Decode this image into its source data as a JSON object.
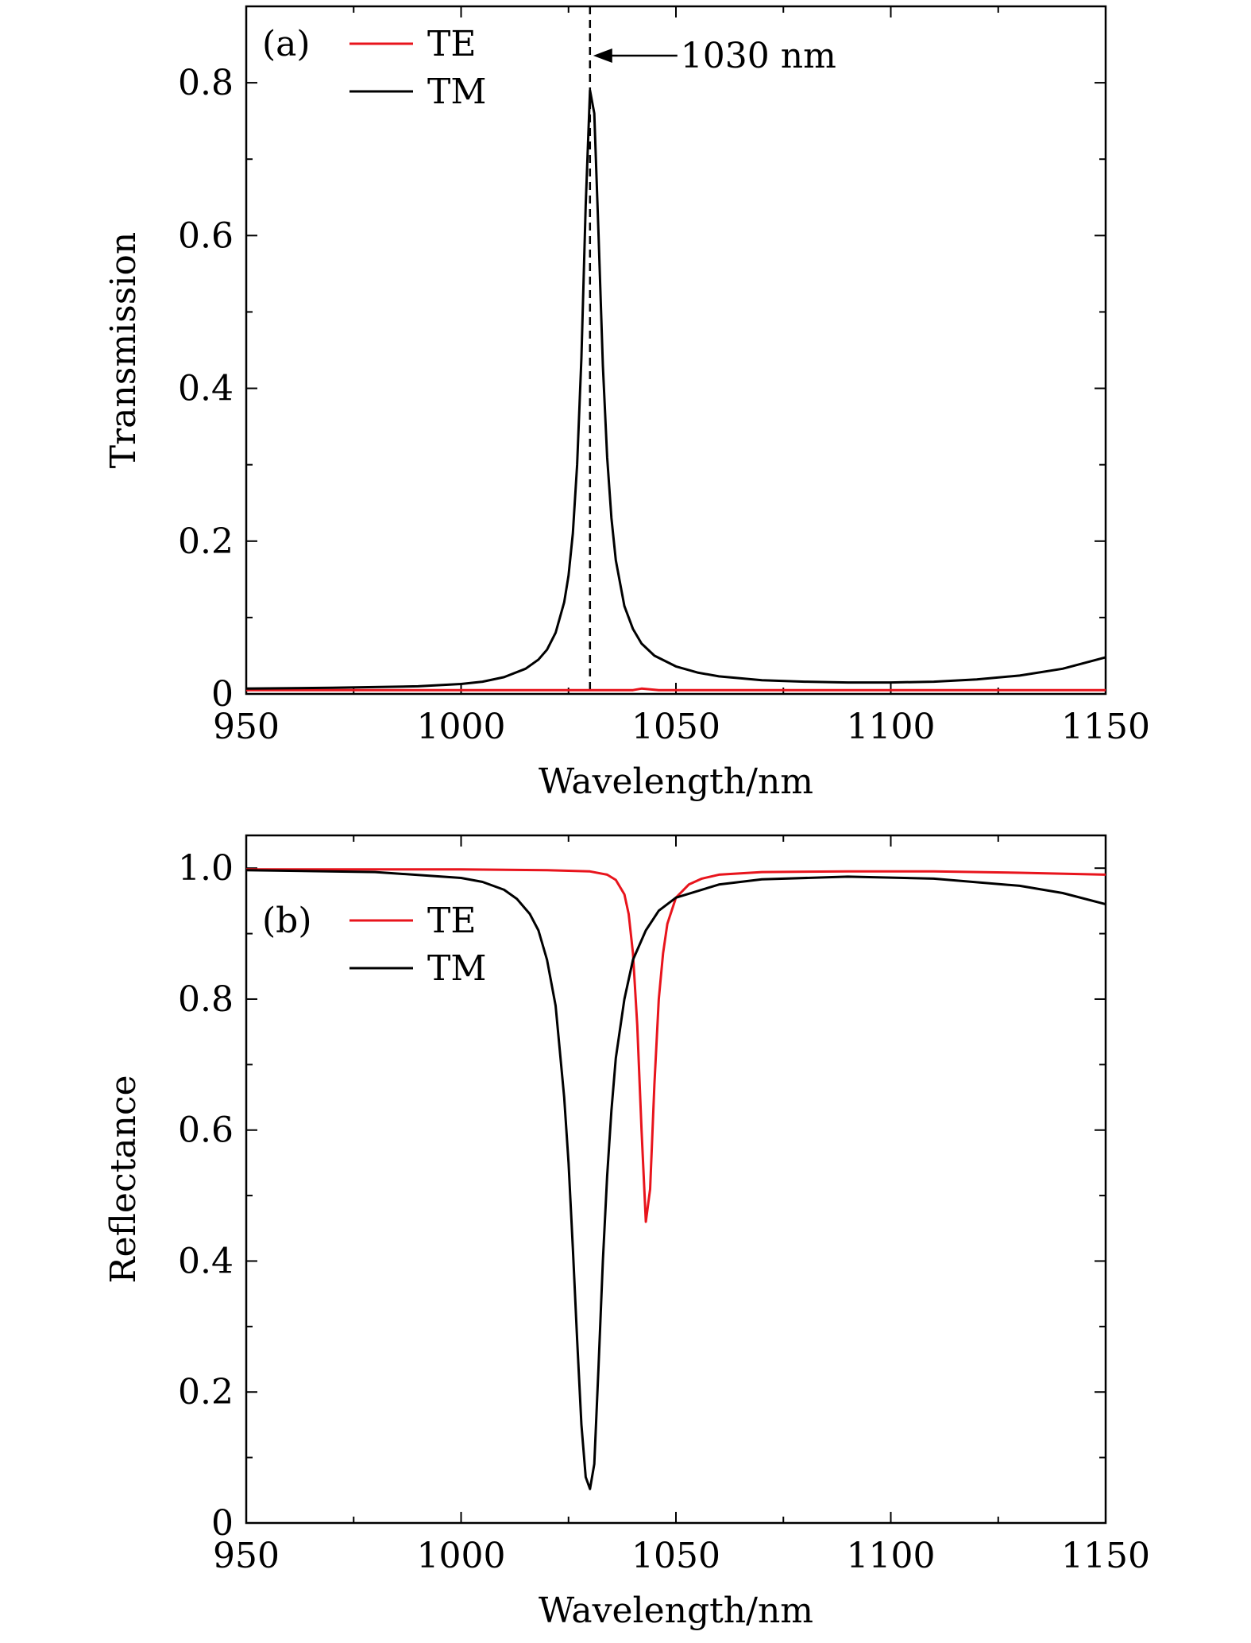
{
  "chart_data": [
    {
      "type": "line",
      "panel_label": "(a)",
      "xlabel": "Wavelength/nm",
      "ylabel": "Transmission",
      "xlim": [
        950,
        1150
      ],
      "ylim": [
        0,
        0.9
      ],
      "x_ticks": [
        950,
        1000,
        1050,
        1100,
        1150
      ],
      "x_tick_labels": [
        "950",
        "1000",
        "1050",
        "1100",
        "1150"
      ],
      "y_ticks": [
        0,
        0.2,
        0.4,
        0.6,
        0.8
      ],
      "y_tick_labels": [
        "0",
        "0.2",
        "0.4",
        "0.6",
        "0.8"
      ],
      "grid": false,
      "legend_position": "top-left",
      "annotation": {
        "text": "1030 nm",
        "x": 1030
      },
      "series": [
        {
          "name": "TE",
          "color": "#e8141c",
          "x": [
            950,
            980,
            1010,
            1025,
            1035,
            1040,
            1042,
            1044,
            1046,
            1050,
            1080,
            1110,
            1150
          ],
          "y": [
            0.005,
            0.005,
            0.005,
            0.005,
            0.005,
            0.005,
            0.007,
            0.006,
            0.005,
            0.005,
            0.005,
            0.005,
            0.005
          ]
        },
        {
          "name": "TM",
          "color": "#000000",
          "x": [
            950,
            970,
            990,
            1000,
            1005,
            1010,
            1015,
            1018,
            1020,
            1022,
            1024,
            1025,
            1026,
            1027,
            1028,
            1029,
            1030,
            1031,
            1032,
            1033,
            1034,
            1035,
            1036,
            1038,
            1040,
            1042,
            1045,
            1050,
            1055,
            1060,
            1070,
            1080,
            1090,
            1100,
            1110,
            1120,
            1130,
            1140,
            1150
          ],
          "y": [
            0.007,
            0.008,
            0.01,
            0.013,
            0.016,
            0.022,
            0.033,
            0.045,
            0.058,
            0.08,
            0.12,
            0.155,
            0.21,
            0.3,
            0.44,
            0.64,
            0.79,
            0.76,
            0.6,
            0.43,
            0.31,
            0.23,
            0.175,
            0.115,
            0.085,
            0.066,
            0.05,
            0.036,
            0.028,
            0.023,
            0.018,
            0.016,
            0.015,
            0.015,
            0.016,
            0.019,
            0.024,
            0.033,
            0.048
          ]
        }
      ]
    },
    {
      "type": "line",
      "panel_label": "(b)",
      "xlabel": "Wavelength/nm",
      "ylabel": "Reflectance",
      "xlim": [
        950,
        1150
      ],
      "ylim": [
        0,
        1.05
      ],
      "x_ticks": [
        950,
        1000,
        1050,
        1100,
        1150
      ],
      "x_tick_labels": [
        "950",
        "1000",
        "1050",
        "1100",
        "1150"
      ],
      "y_ticks": [
        0,
        0.2,
        0.4,
        0.6,
        0.8,
        1.0
      ],
      "y_tick_labels": [
        "0",
        "0.2",
        "0.4",
        "0.6",
        "0.8",
        "1.0"
      ],
      "grid": false,
      "legend_position": "upper-left",
      "series": [
        {
          "name": "TE",
          "color": "#e8141c",
          "x": [
            950,
            1000,
            1020,
            1030,
            1034,
            1036,
            1038,
            1039,
            1040,
            1041,
            1042,
            1043,
            1044,
            1045,
            1046,
            1047,
            1048,
            1050,
            1053,
            1056,
            1060,
            1070,
            1090,
            1110,
            1130,
            1150
          ],
          "y": [
            0.998,
            0.998,
            0.997,
            0.995,
            0.99,
            0.982,
            0.96,
            0.93,
            0.87,
            0.76,
            0.6,
            0.46,
            0.51,
            0.67,
            0.8,
            0.87,
            0.915,
            0.955,
            0.975,
            0.984,
            0.99,
            0.994,
            0.995,
            0.995,
            0.993,
            0.99
          ]
        },
        {
          "name": "TM",
          "color": "#000000",
          "x": [
            950,
            980,
            1000,
            1005,
            1010,
            1013,
            1016,
            1018,
            1020,
            1022,
            1024,
            1025,
            1026,
            1027,
            1028,
            1029,
            1030,
            1031,
            1032,
            1033,
            1034,
            1035,
            1036,
            1038,
            1040,
            1043,
            1046,
            1050,
            1060,
            1070,
            1090,
            1110,
            1130,
            1140,
            1150
          ],
          "y": [
            0.997,
            0.994,
            0.985,
            0.979,
            0.967,
            0.953,
            0.93,
            0.905,
            0.86,
            0.79,
            0.65,
            0.55,
            0.42,
            0.28,
            0.15,
            0.07,
            0.052,
            0.09,
            0.24,
            0.4,
            0.53,
            0.63,
            0.71,
            0.8,
            0.86,
            0.905,
            0.935,
            0.955,
            0.975,
            0.983,
            0.987,
            0.984,
            0.973,
            0.962,
            0.945
          ]
        }
      ]
    }
  ]
}
